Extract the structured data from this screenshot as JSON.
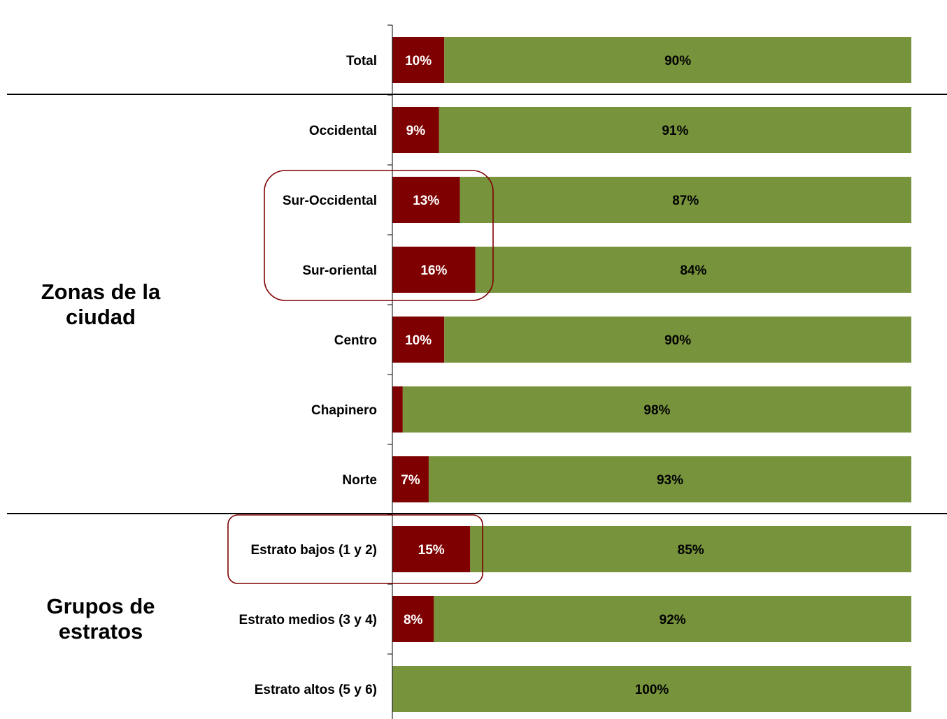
{
  "chart_data": {
    "type": "bar",
    "orientation": "horizontal",
    "stacked": true,
    "normalized": true,
    "categories": [
      "Total",
      "Occidental",
      "Sur-Occidental",
      "Sur-oriental",
      "Centro",
      "Chapinero",
      "Norte",
      "Estrato bajos (1 y 2)",
      "Estrato medios (3 y 4)",
      "Estrato altos (5 y 6)"
    ],
    "series": [
      {
        "color": "#7f0000",
        "values": [
          10,
          9,
          13,
          16,
          10,
          2,
          7,
          15,
          8,
          0
        ],
        "labels": [
          "10%",
          "9%",
          "13%",
          "16%",
          "10%",
          "2%",
          "7%",
          "15%",
          "8%",
          ""
        ]
      },
      {
        "color": "#77933c",
        "values": [
          90,
          91,
          87,
          84,
          90,
          98,
          93,
          85,
          92,
          100
        ],
        "labels": [
          "90%",
          "91%",
          "87%",
          "84%",
          "90%",
          "98%",
          "93%",
          "85%",
          "92%",
          "100%"
        ]
      }
    ],
    "xlim": [
      0,
      100
    ],
    "grid": false,
    "legend": "none",
    "groups": [
      {
        "label_lines": [
          "Zonas de la",
          "ciudad"
        ],
        "start": 1,
        "end": 6
      },
      {
        "label_lines": [
          "Grupos de",
          "estratos"
        ],
        "start": 7,
        "end": 9
      }
    ],
    "highlights": [
      {
        "start": 2,
        "end": 3,
        "color": "#7f0000"
      },
      {
        "start": 7,
        "end": 7,
        "color": "#7f0000"
      }
    ]
  }
}
